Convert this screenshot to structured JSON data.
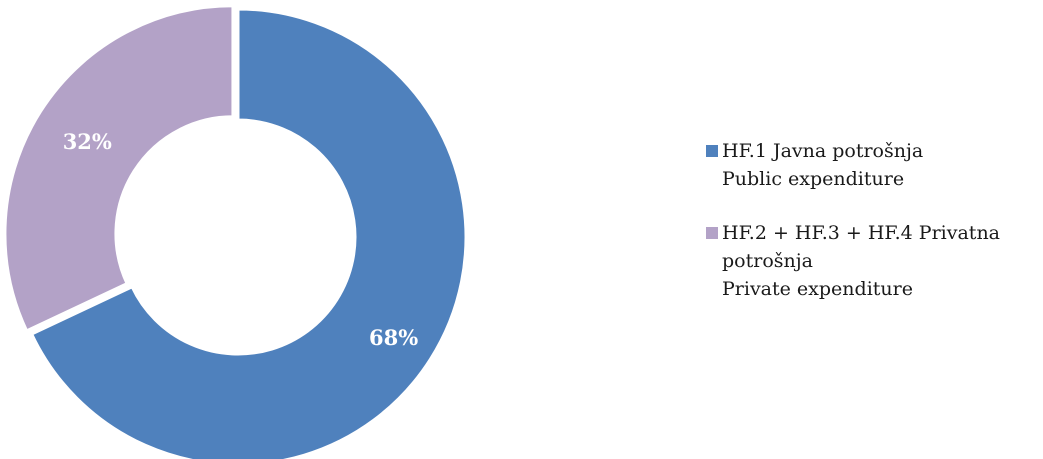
{
  "chart_data": {
    "type": "pie",
    "variant": "donut",
    "title": "",
    "slices": [
      {
        "name_hr": "HF.1 Javna potrošnja",
        "name_en": "Public expenditure",
        "value": 68,
        "label": "68%",
        "color": "#4f81bd"
      },
      {
        "name_hr": "HF.2 + HF.3 + HF.4 Privatna potrošnja",
        "name_hr_line1": "HF.2 + HF.3 + HF.4 Privatna",
        "name_hr_line2": "potrošnja",
        "name_en": "Private expenditure",
        "value": 32,
        "label": "32%",
        "color": "#b3a2c7"
      }
    ],
    "legend_position": "right"
  }
}
